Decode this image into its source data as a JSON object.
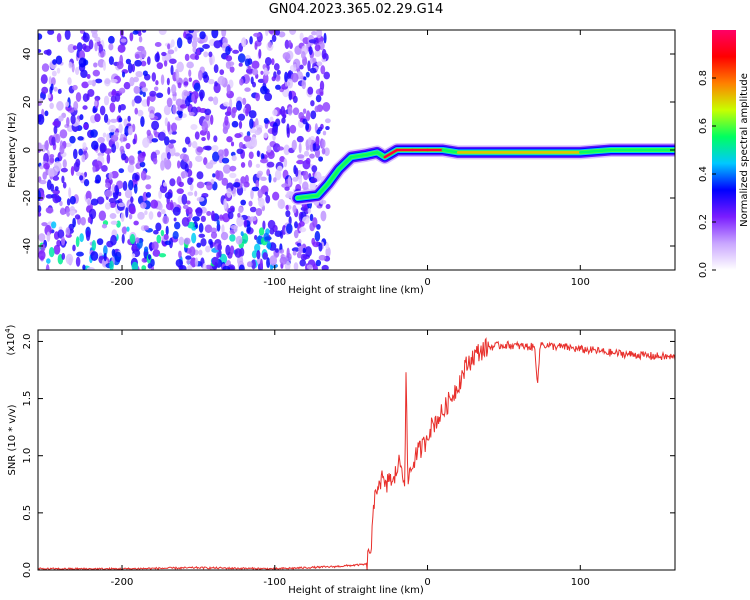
{
  "figure": {
    "title": "GN04.2023.365.02.29.G14"
  },
  "chart_data": [
    {
      "type": "heatmap",
      "title": "GN04.2023.365.02.29.G14",
      "xlabel": "Height of straight line (km)",
      "ylabel": "Frequency (Hz)",
      "xlim": [
        -255,
        162
      ],
      "ylim": [
        -50,
        50
      ],
      "x_ticks": [
        -200,
        -100,
        0,
        100
      ],
      "y_ticks": [
        -40,
        -20,
        0,
        20,
        40
      ],
      "colorbar": {
        "label": "Normalized spectral amplitude",
        "range": [
          0.0,
          1.0
        ],
        "ticks": [
          "0.0",
          "0.2",
          "0.4",
          "0.6",
          "0.8"
        ],
        "colors": [
          "#ffffff",
          "#c9a6ff",
          "#7a1cff",
          "#0000ff",
          "#00c8ff",
          "#00ff60",
          "#c8ff00",
          "#ff8000",
          "#ff0000",
          "#ff0066"
        ]
      },
      "ridge": {
        "x": [
          -85,
          -72,
          -65,
          -58,
          -50,
          -40,
          -33,
          -28,
          -20,
          -10,
          0,
          10,
          20,
          40,
          60,
          80,
          100,
          120,
          140,
          162
        ],
        "y": [
          -20,
          -19,
          -14,
          -8,
          -3,
          -2,
          -1,
          -3,
          0,
          0,
          0,
          0,
          -1,
          -1,
          -1,
          -1,
          -1,
          0,
          0,
          0
        ],
        "peak_amplitude": 0.95
      },
      "noise_region": {
        "x_from": -255,
        "x_to": -65,
        "amplitude_range": [
          0.05,
          0.35
        ]
      }
    },
    {
      "type": "line",
      "xlabel": "Height of straight line (km)",
      "ylabel": "SNR (10 * v/v)",
      "y_multiplier": "(x10",
      "y_multiplier_exp": "4",
      "y_multiplier_close": ")",
      "xlim": [
        -255,
        162
      ],
      "ylim": [
        0,
        2.1
      ],
      "x_ticks": [
        -200,
        -100,
        0,
        100
      ],
      "y_ticks": [
        0.0,
        0.5,
        1.0,
        1.5,
        2.0
      ],
      "y_tick_labels": [
        "0.0",
        "0.5",
        "1.0",
        "1.5",
        "2.0"
      ],
      "color": "#e8302c",
      "series": [
        {
          "x": [
            -255,
            -200,
            -150,
            -100,
            -60,
            -40,
            -37,
            -35,
            -33,
            -30,
            -27,
            -25,
            -23,
            -20,
            -18,
            -15,
            -14,
            -13,
            -12,
            -10,
            -8,
            -5,
            -2,
            0,
            5,
            10,
            15,
            20,
            25,
            30,
            35,
            40,
            50,
            60,
            70,
            72,
            74,
            80,
            90,
            100,
            110,
            120,
            130,
            140,
            150,
            162
          ],
          "y": [
            0.01,
            0.01,
            0.02,
            0.01,
            0.03,
            0.05,
            0.2,
            0.55,
            0.75,
            0.8,
            0.7,
            0.85,
            0.72,
            0.9,
            0.95,
            0.8,
            1.7,
            0.75,
            0.85,
            0.9,
            1.0,
            1.05,
            1.1,
            1.2,
            1.3,
            1.38,
            1.5,
            1.62,
            1.78,
            1.87,
            1.92,
            1.95,
            1.97,
            1.96,
            1.95,
            1.65,
            1.98,
            1.96,
            1.95,
            1.93,
            1.92,
            1.9,
            1.89,
            1.88,
            1.87,
            1.86
          ]
        }
      ]
    }
  ]
}
